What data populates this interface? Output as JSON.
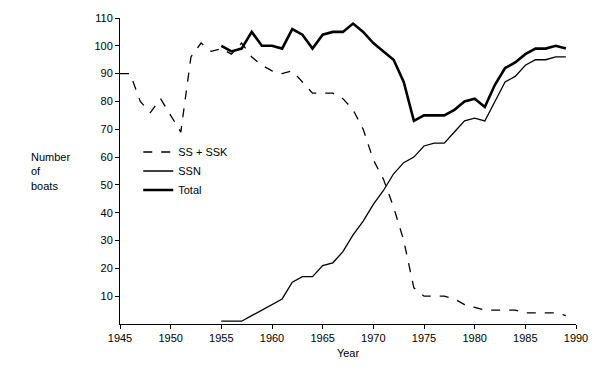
{
  "chart_data": {
    "type": "line",
    "x_label": "Year",
    "y_label": "Number of boats",
    "x": [
      1945,
      1946,
      1947,
      1948,
      1949,
      1950,
      1951,
      1952,
      1953,
      1954,
      1955,
      1956,
      1957,
      1958,
      1959,
      1960,
      1961,
      1962,
      1963,
      1964,
      1965,
      1966,
      1967,
      1968,
      1969,
      1970,
      1971,
      1972,
      1973,
      1974,
      1975,
      1976,
      1977,
      1978,
      1979,
      1980,
      1981,
      1982,
      1983,
      1984,
      1985,
      1986,
      1987,
      1988,
      1989
    ],
    "series": [
      {
        "name": "SS + SSK",
        "color": "#000000",
        "line_style": "dashed",
        "values": [
          90,
          90,
          80,
          76,
          81,
          75,
          69,
          96,
          101,
          98,
          99,
          97,
          101,
          96,
          93,
          91,
          90,
          91,
          87,
          83,
          83,
          83,
          81,
          77,
          70,
          59,
          52,
          42,
          30,
          13,
          10,
          10,
          10,
          9,
          7,
          6,
          5,
          5,
          5,
          5,
          4,
          4,
          4,
          4,
          3
        ]
      },
      {
        "name": "SSN",
        "color": "#000000",
        "line_style": "solid",
        "values": [
          null,
          null,
          null,
          null,
          null,
          null,
          null,
          null,
          null,
          null,
          1,
          1,
          1,
          3,
          5,
          7,
          9,
          15,
          17,
          17,
          21,
          22,
          26,
          32,
          37,
          43,
          48,
          54,
          58,
          60,
          64,
          65,
          65,
          69,
          73,
          74,
          73,
          80,
          87,
          89,
          93,
          95,
          95,
          96,
          96
        ]
      },
      {
        "name": "Total",
        "color": "#000000",
        "line_style": "bold",
        "values": [
          null,
          null,
          null,
          null,
          null,
          null,
          null,
          null,
          null,
          null,
          100,
          98,
          99,
          105,
          100,
          100,
          99,
          106,
          104,
          99,
          104,
          105,
          105,
          108,
          105,
          101,
          98,
          95,
          87,
          73,
          75,
          75,
          75,
          77,
          80,
          81,
          78,
          86,
          92,
          94,
          97,
          99,
          99,
          100,
          99
        ]
      }
    ],
    "xlim": [
      1945,
      1990
    ],
    "xticks": [
      1945,
      1950,
      1955,
      1960,
      1965,
      1970,
      1975,
      1980,
      1985,
      1990
    ],
    "ylim": [
      0,
      110
    ],
    "yticks": [
      10,
      20,
      30,
      40,
      50,
      60,
      70,
      80,
      90,
      100,
      110
    ],
    "grid": false,
    "legend": "left"
  }
}
